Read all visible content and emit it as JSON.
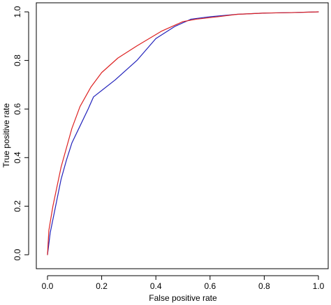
{
  "chart_data": {
    "type": "line",
    "title": "",
    "xlabel": "False positive rate",
    "ylabel": "True positive rate",
    "xlim": [
      0,
      1
    ],
    "ylim": [
      0,
      1
    ],
    "x_ticks": [
      "0.0",
      "0.2",
      "0.4",
      "0.6",
      "0.8",
      "1.0"
    ],
    "y_ticks": [
      "0.0",
      "0.2",
      "0.4",
      "0.6",
      "0.8",
      "1.0"
    ],
    "grid": false,
    "legend": "none",
    "series": [
      {
        "color": "#2222bb",
        "points": [
          [
            0.0,
            0.0
          ],
          [
            0.01,
            0.09
          ],
          [
            0.03,
            0.2
          ],
          [
            0.05,
            0.31
          ],
          [
            0.07,
            0.39
          ],
          [
            0.09,
            0.46
          ],
          [
            0.12,
            0.53
          ],
          [
            0.15,
            0.6
          ],
          [
            0.17,
            0.65
          ],
          [
            0.25,
            0.72
          ],
          [
            0.33,
            0.8
          ],
          [
            0.4,
            0.89
          ],
          [
            0.47,
            0.94
          ],
          [
            0.53,
            0.97
          ],
          [
            0.6,
            0.98
          ],
          [
            0.7,
            0.99
          ],
          [
            0.8,
            0.995
          ],
          [
            0.9,
            0.997
          ],
          [
            1.0,
            1.0
          ]
        ]
      },
      {
        "color": "#dd2222",
        "points": [
          [
            0.0,
            0.0
          ],
          [
            0.005,
            0.1
          ],
          [
            0.02,
            0.2
          ],
          [
            0.05,
            0.36
          ],
          [
            0.07,
            0.44
          ],
          [
            0.09,
            0.52
          ],
          [
            0.12,
            0.61
          ],
          [
            0.16,
            0.69
          ],
          [
            0.2,
            0.75
          ],
          [
            0.26,
            0.81
          ],
          [
            0.33,
            0.86
          ],
          [
            0.42,
            0.92
          ],
          [
            0.5,
            0.96
          ],
          [
            0.55,
            0.97
          ],
          [
            0.63,
            0.98
          ],
          [
            0.7,
            0.99
          ],
          [
            0.8,
            0.995
          ],
          [
            0.9,
            0.997
          ],
          [
            1.0,
            1.0
          ]
        ]
      }
    ]
  }
}
